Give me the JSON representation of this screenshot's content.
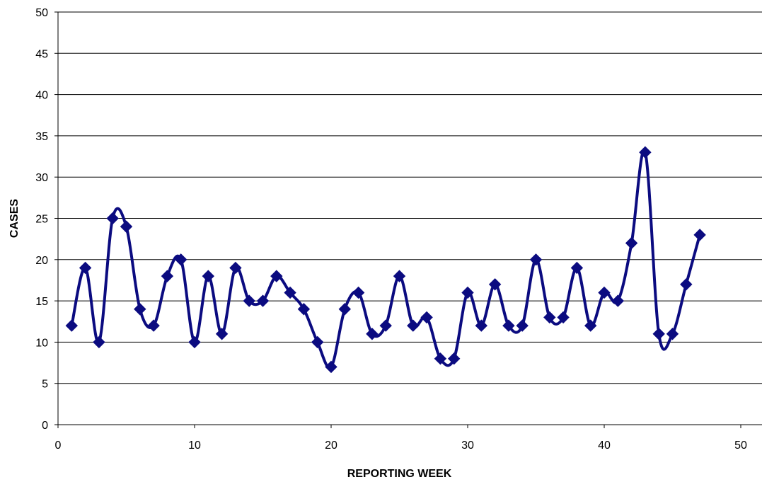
{
  "chart_data": {
    "type": "line",
    "xlabel": "REPORTING WEEK",
    "ylabel": "CASES",
    "xlim": [
      0,
      50
    ],
    "ylim": [
      0,
      50
    ],
    "xticks": [
      0,
      10,
      20,
      30,
      40,
      50
    ],
    "yticks": [
      0,
      5,
      10,
      15,
      20,
      25,
      30,
      35,
      40,
      45,
      50
    ],
    "grid": "horizontal",
    "legend": "none",
    "smoothed": true,
    "marker": "diamond",
    "colors": {
      "line": "#0b0b80",
      "grid": "#000000",
      "axis": "#000000"
    },
    "series": [
      {
        "x": [
          1,
          2,
          3,
          4,
          5,
          6,
          7,
          8,
          9,
          10,
          11,
          12,
          13,
          14,
          15,
          16,
          17,
          18,
          19,
          20,
          21,
          22,
          23,
          24,
          25,
          26,
          27,
          28,
          29,
          30,
          31,
          32,
          33,
          34,
          35,
          36,
          37,
          38,
          39,
          40,
          41,
          42,
          43,
          44,
          45,
          46,
          47
        ],
        "values": [
          12,
          19,
          10,
          25,
          24,
          14,
          12,
          18,
          20,
          10,
          18,
          11,
          19,
          15,
          15,
          18,
          16,
          14,
          10,
          7,
          14,
          16,
          11,
          12,
          18,
          12,
          13,
          8,
          8,
          16,
          12,
          17,
          12,
          12,
          20,
          13,
          13,
          19,
          12,
          16,
          15,
          22,
          33,
          11,
          11,
          17,
          23
        ]
      }
    ]
  }
}
